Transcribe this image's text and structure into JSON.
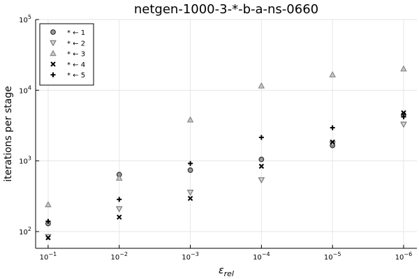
{
  "chart_data": {
    "type": "scatter",
    "title": "netgen-1000-3-*-b-a-ns-0660",
    "xlabel": "ε",
    "xlabel_sub": "rel",
    "ylabel": "iterations per stage",
    "x_scale": "log-reversed",
    "y_scale": "log",
    "xlim": [
      0.15,
      6.5e-07
    ],
    "ylim": [
      58,
      100000
    ],
    "grid": true,
    "legend_position": "top-left",
    "x_ticks": [
      {
        "value": 0.1,
        "base": "10",
        "exp": "−1"
      },
      {
        "value": 0.01,
        "base": "10",
        "exp": "−2"
      },
      {
        "value": 0.001,
        "base": "10",
        "exp": "−3"
      },
      {
        "value": 0.0001,
        "base": "10",
        "exp": "−4"
      },
      {
        "value": 1e-05,
        "base": "10",
        "exp": "−5"
      },
      {
        "value": 1e-06,
        "base": "10",
        "exp": "−6"
      }
    ],
    "y_ticks": [
      {
        "value": 100,
        "base": "10",
        "exp": "2"
      },
      {
        "value": 1000,
        "base": "10",
        "exp": "3"
      },
      {
        "value": 10000,
        "base": "10",
        "exp": "4"
      },
      {
        "value": 100000,
        "base": "10",
        "exp": "5"
      }
    ],
    "x": [
      0.1,
      0.01,
      0.001,
      0.0001,
      1e-05,
      1e-06
    ],
    "series": [
      {
        "name": "* ← 1",
        "marker": "circle",
        "color": "#555555",
        "values": [
          130,
          640,
          740,
          1050,
          1650,
          4500
        ]
      },
      {
        "name": "* ← 2",
        "marker": "triangle-down",
        "color": "#777777",
        "values": [
          85,
          210,
          360,
          540,
          1750,
          3300
        ]
      },
      {
        "name": "* ← 3",
        "marker": "triangle-up",
        "color": "#888888",
        "values": [
          240,
          570,
          3800,
          11500,
          16500,
          20000
        ]
      },
      {
        "name": "* ← 4",
        "marker": "x",
        "color": "#000000",
        "values": [
          82,
          160,
          295,
          840,
          1850,
          4800
        ]
      },
      {
        "name": "* ← 5",
        "marker": "plus",
        "color": "#000000",
        "values": [
          140,
          285,
          920,
          2150,
          2950,
          4200
        ]
      }
    ]
  }
}
